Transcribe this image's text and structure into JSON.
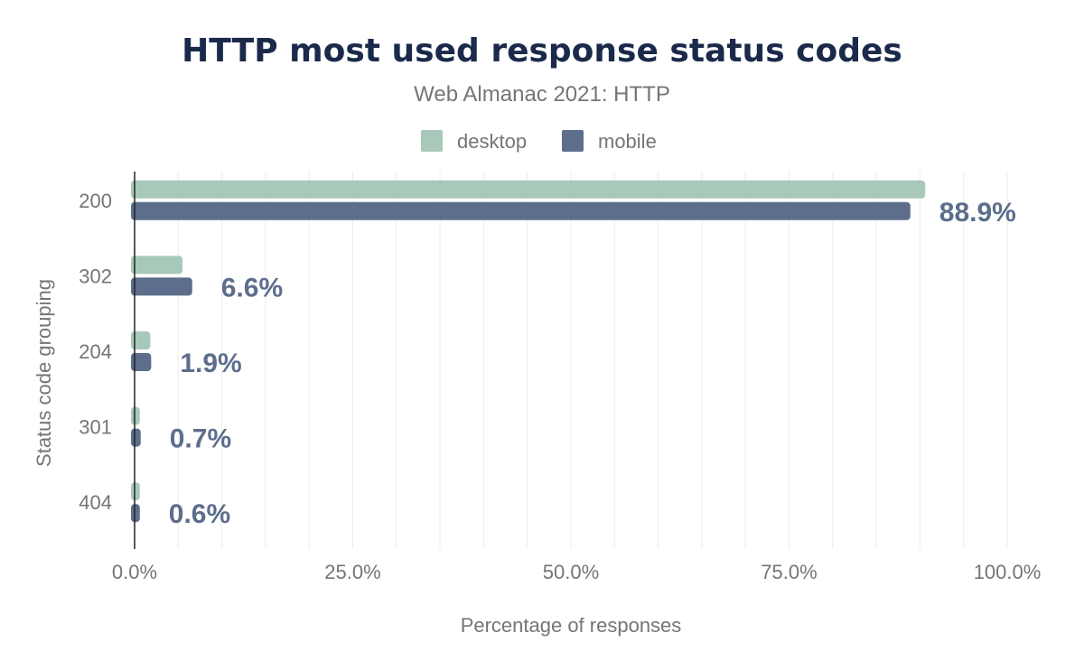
{
  "chart_data": {
    "type": "bar",
    "orientation": "horizontal",
    "title": "HTTP most used response status codes",
    "subtitle": "Web Almanac 2021: HTTP",
    "xlabel": "Percentage of responses",
    "ylabel": "Status code grouping",
    "xlim": [
      0,
      100
    ],
    "x_ticks": [
      "0.0%",
      "25.0%",
      "50.0%",
      "75.0%",
      "100.0%"
    ],
    "x_tick_values": [
      0,
      25,
      50,
      75,
      100
    ],
    "grid": true,
    "legend_position": "top-center",
    "categories": [
      "200",
      "302",
      "204",
      "301",
      "404"
    ],
    "series": [
      {
        "name": "desktop",
        "color": "#a8c9b9",
        "values": [
          90.6,
          5.5,
          1.8,
          0.6,
          0.6
        ]
      },
      {
        "name": "mobile",
        "color": "#5d6e8c",
        "values": [
          88.9,
          6.6,
          1.9,
          0.7,
          0.6
        ],
        "data_labels": [
          "88.9%",
          "6.6%",
          "1.9%",
          "0.7%",
          "0.6%"
        ]
      }
    ],
    "colors": {
      "title": "#1b2a4a",
      "subtitle": "#757575",
      "text": "#757575",
      "axis": "#222222",
      "grid": "#ececec",
      "data_label": "#5d6e8c"
    }
  }
}
